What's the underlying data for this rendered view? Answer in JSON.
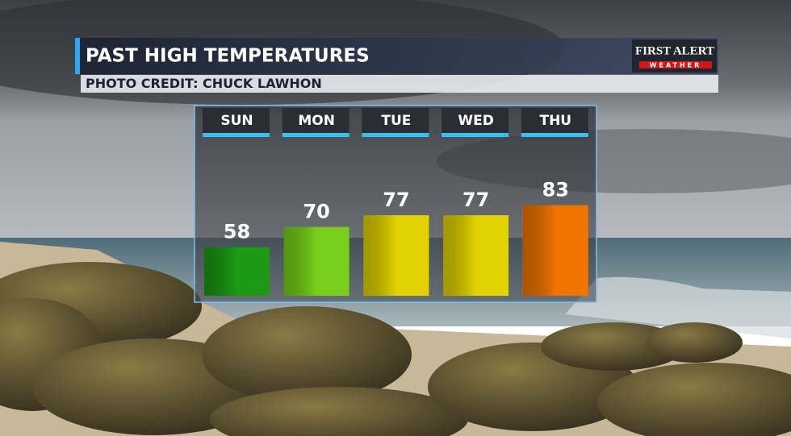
{
  "chart_data": {
    "type": "bar",
    "title": "PAST HIGH TEMPERATURES",
    "subtitle": "PHOTO CREDIT: CHUCK LAWHON",
    "categories": [
      "SUN",
      "MON",
      "TUE",
      "WED",
      "THU"
    ],
    "values": [
      58,
      70,
      77,
      77,
      83
    ],
    "colors": [
      "#1c9a14",
      "#78d01c",
      "#e2d200",
      "#e2d200",
      "#f07400"
    ],
    "ylim": [
      29,
      85
    ]
  },
  "logo": {
    "title": "FIRST ALERT",
    "subtitle": "WEATHER"
  }
}
